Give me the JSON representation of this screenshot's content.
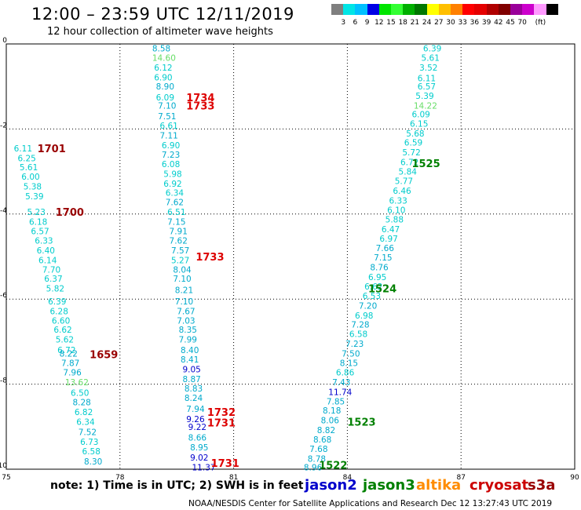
{
  "title": "12:00 – 23:59 UTC 12/11/2019",
  "subtitle": "12 hour collection of altimeter wave heights",
  "colorbar": {
    "colors": [
      "#7f7f7f",
      "#00e5e5",
      "#00c0ff",
      "#0000e5",
      "#00e500",
      "#33ff33",
      "#00b000",
      "#007800",
      "#ffff00",
      "#ffbf00",
      "#ff8000",
      "#ff0000",
      "#e50000",
      "#b00000",
      "#800000",
      "#990099",
      "#cc00cc",
      "#ff99ff",
      "#000000"
    ],
    "labels": [
      "3",
      "6",
      "9",
      "12",
      "15",
      "18",
      "21",
      "24",
      "27",
      "30",
      "33",
      "36",
      "39",
      "42",
      "45",
      "70",
      "(ft)"
    ]
  },
  "note": "note:  1) Time is in UTC;  2) SWH is in feet",
  "legend": [
    {
      "name": "jason2",
      "color": "#0000cc"
    },
    {
      "name": "jason3",
      "color": "#008000"
    },
    {
      "name": "altika",
      "color": "#ff8c00"
    },
    {
      "name": "cryosat",
      "color": "#cc0000"
    },
    {
      "name": "s3a",
      "color": "#990000"
    }
  ],
  "credit": "NOAA/NESDIS Center for Satellite Applications and Research     Dec 12 13:27:43 UTC 2019",
  "chart_data": {
    "type": "scatter",
    "xlim": [
      75,
      90
    ],
    "ylim": [
      -10,
      0
    ],
    "x_ticks": [
      "75",
      "78",
      "81",
      "84",
      "87",
      "90"
    ],
    "y_ticks": [
      "0",
      "-2",
      "-4",
      "-6",
      "-8",
      "-10"
    ],
    "grid": true,
    "tracks": [
      {
        "satellite": "s3a",
        "series": [
          {
            "name": "1701",
            "x": 75.82,
            "y": -2.45,
            "color": "#990000"
          },
          {
            "name": "1700",
            "x": 76.3,
            "y": -3.95,
            "color": "#990000"
          },
          {
            "name": "1659",
            "x": 77.2,
            "y": -7.3,
            "color": "#990000"
          }
        ],
        "points": [
          {
            "x": 75.2,
            "y": -2.45,
            "v": "6.11",
            "c": "#00cccc"
          },
          {
            "x": 75.3,
            "y": -2.68,
            "v": "6.25",
            "c": "#00cccc"
          },
          {
            "x": 75.35,
            "y": -2.9,
            "v": "5.61",
            "c": "#00cccc"
          },
          {
            "x": 75.4,
            "y": -3.12,
            "v": "6.00",
            "c": "#00cccc"
          },
          {
            "x": 75.45,
            "y": -3.35,
            "v": "5.38",
            "c": "#00cccc"
          },
          {
            "x": 75.5,
            "y": -3.58,
            "v": "5.39",
            "c": "#00cccc"
          },
          {
            "x": 75.55,
            "y": -3.95,
            "v": "5.23",
            "c": "#00cccc"
          },
          {
            "x": 75.6,
            "y": -4.18,
            "v": "6.18",
            "c": "#00cccc"
          },
          {
            "x": 75.65,
            "y": -4.4,
            "v": "6.57",
            "c": "#00cccc"
          },
          {
            "x": 75.75,
            "y": -4.62,
            "v": "6.33",
            "c": "#00cccc"
          },
          {
            "x": 75.8,
            "y": -4.85,
            "v": "6.40",
            "c": "#00cccc"
          },
          {
            "x": 75.85,
            "y": -5.08,
            "v": "6.14",
            "c": "#00cccc"
          },
          {
            "x": 75.95,
            "y": -5.3,
            "v": "7.70",
            "c": "#00cccc"
          },
          {
            "x": 76.0,
            "y": -5.52,
            "v": "6.37",
            "c": "#00cccc"
          },
          {
            "x": 76.05,
            "y": -5.75,
            "v": "5.82",
            "c": "#00cccc"
          },
          {
            "x": 76.1,
            "y": -6.05,
            "v": "6.39",
            "c": "#00cccc"
          },
          {
            "x": 76.15,
            "y": -6.28,
            "v": "6.28",
            "c": "#00cccc"
          },
          {
            "x": 76.2,
            "y": -6.5,
            "v": "6.60",
            "c": "#00cccc"
          },
          {
            "x": 76.25,
            "y": -6.72,
            "v": "6.62",
            "c": "#00cccc"
          },
          {
            "x": 76.3,
            "y": -6.95,
            "v": "5.62",
            "c": "#00cccc"
          },
          {
            "x": 76.35,
            "y": -7.2,
            "v": "6.72",
            "c": "#00cccc"
          },
          {
            "x": 76.4,
            "y": -7.28,
            "v": "8.22",
            "c": "#00aacc"
          },
          {
            "x": 76.45,
            "y": -7.5,
            "v": "7.87",
            "c": "#00aacc"
          },
          {
            "x": 76.5,
            "y": -7.72,
            "v": "7.96",
            "c": "#00aacc"
          },
          {
            "x": 76.55,
            "y": -7.95,
            "v": "13.62",
            "c": "#66dd66"
          },
          {
            "x": 76.7,
            "y": -8.2,
            "v": "6.50",
            "c": "#00cccc"
          },
          {
            "x": 76.75,
            "y": -8.42,
            "v": "8.28",
            "c": "#00aacc"
          },
          {
            "x": 76.8,
            "y": -8.65,
            "v": "6.82",
            "c": "#00cccc"
          },
          {
            "x": 76.85,
            "y": -8.88,
            "v": "6.34",
            "c": "#00cccc"
          },
          {
            "x": 76.9,
            "y": -9.12,
            "v": "7.52",
            "c": "#00aacc"
          },
          {
            "x": 76.95,
            "y": -9.35,
            "v": "6.73",
            "c": "#00cccc"
          },
          {
            "x": 77.0,
            "y": -9.58,
            "v": "6.58",
            "c": "#00cccc"
          },
          {
            "x": 77.05,
            "y": -9.82,
            "v": "8.30",
            "c": "#00aacc"
          }
        ]
      },
      {
        "satellite": "cryosat",
        "series": [
          {
            "name": "1734",
            "x": 79.75,
            "y": -1.25,
            "color": "#dd0000"
          },
          {
            "name": "1733",
            "x": 79.75,
            "y": -1.45,
            "color": "#dd0000"
          },
          {
            "name": "1733",
            "x": 80.0,
            "y": -5.0,
            "color": "#dd0000"
          },
          {
            "name": "1732",
            "x": 80.3,
            "y": -8.65,
            "color": "#dd0000"
          },
          {
            "name": "1731",
            "x": 80.3,
            "y": -8.9,
            "color": "#dd0000"
          },
          {
            "name": "1731",
            "x": 80.4,
            "y": -9.85,
            "color": "#dd0000"
          }
        ],
        "points": [
          {
            "x": 78.85,
            "y": -0.1,
            "v": "8.58",
            "c": "#00aacc"
          },
          {
            "x": 78.85,
            "y": -0.32,
            "v": "14.60",
            "c": "#66dd66"
          },
          {
            "x": 78.9,
            "y": -0.55,
            "v": "6.12",
            "c": "#00cccc"
          },
          {
            "x": 78.9,
            "y": -0.78,
            "v": "6.90",
            "c": "#00cccc"
          },
          {
            "x": 78.95,
            "y": -1.0,
            "v": "8.90",
            "c": "#00aacc"
          },
          {
            "x": 78.95,
            "y": -1.25,
            "v": "6.09",
            "c": "#00cccc"
          },
          {
            "x": 79.0,
            "y": -1.45,
            "v": "7.10",
            "c": "#00aacc"
          },
          {
            "x": 79.0,
            "y": -1.7,
            "v": "7.51",
            "c": "#00aacc"
          },
          {
            "x": 79.05,
            "y": -1.92,
            "v": "6.61",
            "c": "#00cccc"
          },
          {
            "x": 79.05,
            "y": -2.15,
            "v": "7.11",
            "c": "#00aacc"
          },
          {
            "x": 79.1,
            "y": -2.38,
            "v": "6.90",
            "c": "#00cccc"
          },
          {
            "x": 79.1,
            "y": -2.6,
            "v": "7.23",
            "c": "#00aacc"
          },
          {
            "x": 79.1,
            "y": -2.82,
            "v": "6.08",
            "c": "#00cccc"
          },
          {
            "x": 79.15,
            "y": -3.05,
            "v": "5.98",
            "c": "#00cccc"
          },
          {
            "x": 79.15,
            "y": -3.28,
            "v": "6.92",
            "c": "#00cccc"
          },
          {
            "x": 79.2,
            "y": -3.5,
            "v": "6.34",
            "c": "#00cccc"
          },
          {
            "x": 79.2,
            "y": -3.72,
            "v": "7.62",
            "c": "#00aacc"
          },
          {
            "x": 79.25,
            "y": -3.95,
            "v": "6.51",
            "c": "#00cccc"
          },
          {
            "x": 79.25,
            "y": -4.18,
            "v": "7.15",
            "c": "#00aacc"
          },
          {
            "x": 79.3,
            "y": -4.4,
            "v": "7.91",
            "c": "#00aacc"
          },
          {
            "x": 79.3,
            "y": -4.62,
            "v": "7.62",
            "c": "#00aacc"
          },
          {
            "x": 79.35,
            "y": -4.85,
            "v": "7.57",
            "c": "#00aacc"
          },
          {
            "x": 79.35,
            "y": -5.08,
            "v": "5.27",
            "c": "#00cccc"
          },
          {
            "x": 79.4,
            "y": -5.3,
            "v": "8.04",
            "c": "#00aacc"
          },
          {
            "x": 79.4,
            "y": -5.52,
            "v": "7.10",
            "c": "#00aacc"
          },
          {
            "x": 79.45,
            "y": -5.78,
            "v": "8.21",
            "c": "#00aacc"
          },
          {
            "x": 79.45,
            "y": -6.05,
            "v": "7.10",
            "c": "#00aacc"
          },
          {
            "x": 79.5,
            "y": -6.28,
            "v": "7.67",
            "c": "#00aacc"
          },
          {
            "x": 79.5,
            "y": -6.5,
            "v": "7.03",
            "c": "#00aacc"
          },
          {
            "x": 79.55,
            "y": -6.72,
            "v": "8.35",
            "c": "#00aacc"
          },
          {
            "x": 79.55,
            "y": -6.95,
            "v": "7.99",
            "c": "#00aacc"
          },
          {
            "x": 79.6,
            "y": -7.2,
            "v": "8.40",
            "c": "#00aacc"
          },
          {
            "x": 79.6,
            "y": -7.42,
            "v": "8.41",
            "c": "#00aacc"
          },
          {
            "x": 79.65,
            "y": -7.65,
            "v": "9.05",
            "c": "#0000cc"
          },
          {
            "x": 79.65,
            "y": -7.88,
            "v": "8.87",
            "c": "#00aacc"
          },
          {
            "x": 79.7,
            "y": -8.1,
            "v": "8.83",
            "c": "#00aacc"
          },
          {
            "x": 79.7,
            "y": -8.32,
            "v": "8.24",
            "c": "#00aacc"
          },
          {
            "x": 79.75,
            "y": -8.58,
            "v": "7.94",
            "c": "#00aacc"
          },
          {
            "x": 79.75,
            "y": -8.82,
            "v": "9.26",
            "c": "#0000cc"
          },
          {
            "x": 79.8,
            "y": -9.0,
            "v": "9.22",
            "c": "#0000cc"
          },
          {
            "x": 79.8,
            "y": -9.25,
            "v": "8.66",
            "c": "#00aacc"
          },
          {
            "x": 79.85,
            "y": -9.48,
            "v": "8.95",
            "c": "#00aacc"
          },
          {
            "x": 79.85,
            "y": -9.72,
            "v": "9.02",
            "c": "#0000cc"
          },
          {
            "x": 79.9,
            "y": -9.95,
            "v": "11.37",
            "c": "#0000cc"
          }
        ]
      },
      {
        "satellite": "jason3",
        "series": [
          {
            "name": "1525",
            "x": 85.7,
            "y": -2.8,
            "color": "#008000"
          },
          {
            "name": "1524",
            "x": 84.55,
            "y": -5.75,
            "color": "#008000"
          },
          {
            "name": "1523",
            "x": 84.0,
            "y": -8.88,
            "color": "#008000"
          },
          {
            "name": "1522",
            "x": 83.25,
            "y": -9.9,
            "color": "#008000"
          }
        ],
        "points": [
          {
            "x": 86.0,
            "y": -0.1,
            "v": "6.39",
            "c": "#00cccc"
          },
          {
            "x": 85.95,
            "y": -0.32,
            "v": "5.61",
            "c": "#00cccc"
          },
          {
            "x": 85.9,
            "y": -0.55,
            "v": "3.52",
            "c": "#00cccc"
          },
          {
            "x": 85.85,
            "y": -0.8,
            "v": "6.11",
            "c": "#00cccc"
          },
          {
            "x": 85.85,
            "y": -1.0,
            "v": "6.57",
            "c": "#00cccc"
          },
          {
            "x": 85.8,
            "y": -1.22,
            "v": "5.39",
            "c": "#00cccc"
          },
          {
            "x": 85.75,
            "y": -1.45,
            "v": "14.22",
            "c": "#66dd66"
          },
          {
            "x": 85.7,
            "y": -1.65,
            "v": "6.09",
            "c": "#00cccc"
          },
          {
            "x": 85.65,
            "y": -1.87,
            "v": "6.15",
            "c": "#00cccc"
          },
          {
            "x": 85.55,
            "y": -2.1,
            "v": "5.68",
            "c": "#00cccc"
          },
          {
            "x": 85.5,
            "y": -2.32,
            "v": "6.59",
            "c": "#00cccc"
          },
          {
            "x": 85.45,
            "y": -2.55,
            "v": "5.72",
            "c": "#00cccc"
          },
          {
            "x": 85.4,
            "y": -2.78,
            "v": "6.72",
            "c": "#00cccc"
          },
          {
            "x": 85.35,
            "y": -3.0,
            "v": "5.84",
            "c": "#00cccc"
          },
          {
            "x": 85.25,
            "y": -3.22,
            "v": "5.77",
            "c": "#00cccc"
          },
          {
            "x": 85.2,
            "y": -3.45,
            "v": "6.46",
            "c": "#00cccc"
          },
          {
            "x": 85.1,
            "y": -3.68,
            "v": "6.33",
            "c": "#00cccc"
          },
          {
            "x": 85.05,
            "y": -3.9,
            "v": "6.10",
            "c": "#00cccc"
          },
          {
            "x": 85.0,
            "y": -4.12,
            "v": "5.88",
            "c": "#00cccc"
          },
          {
            "x": 84.9,
            "y": -4.35,
            "v": "6.47",
            "c": "#00cccc"
          },
          {
            "x": 84.85,
            "y": -4.58,
            "v": "6.97",
            "c": "#00cccc"
          },
          {
            "x": 84.75,
            "y": -4.8,
            "v": "7.66",
            "c": "#00aacc"
          },
          {
            "x": 84.7,
            "y": -5.02,
            "v": "7.15",
            "c": "#00aacc"
          },
          {
            "x": 84.6,
            "y": -5.25,
            "v": "8.76",
            "c": "#00aacc"
          },
          {
            "x": 84.55,
            "y": -5.48,
            "v": "6.95",
            "c": "#00cccc"
          },
          {
            "x": 84.45,
            "y": -5.7,
            "v": "6.62",
            "c": "#00cccc"
          },
          {
            "x": 84.4,
            "y": -5.92,
            "v": "6.53",
            "c": "#00cccc"
          },
          {
            "x": 84.3,
            "y": -6.15,
            "v": "7.20",
            "c": "#00aacc"
          },
          {
            "x": 84.2,
            "y": -6.38,
            "v": "6.98",
            "c": "#00cccc"
          },
          {
            "x": 84.1,
            "y": -6.6,
            "v": "7.28",
            "c": "#00aacc"
          },
          {
            "x": 84.05,
            "y": -6.82,
            "v": "6.58",
            "c": "#00cccc"
          },
          {
            "x": 83.95,
            "y": -7.05,
            "v": "7.23",
            "c": "#00aacc"
          },
          {
            "x": 83.85,
            "y": -7.28,
            "v": "7.50",
            "c": "#00aacc"
          },
          {
            "x": 83.8,
            "y": -7.5,
            "v": "8.15",
            "c": "#00aacc"
          },
          {
            "x": 83.7,
            "y": -7.72,
            "v": "6.86",
            "c": "#00cccc"
          },
          {
            "x": 83.6,
            "y": -7.95,
            "v": "7.43",
            "c": "#00aacc"
          },
          {
            "x": 83.5,
            "y": -8.18,
            "v": "11.74",
            "c": "#0000cc"
          },
          {
            "x": 83.45,
            "y": -8.4,
            "v": "7.85",
            "c": "#00aacc"
          },
          {
            "x": 83.35,
            "y": -8.62,
            "v": "8.18",
            "c": "#00aacc"
          },
          {
            "x": 83.3,
            "y": -8.85,
            "v": "8.06",
            "c": "#00aacc"
          },
          {
            "x": 83.2,
            "y": -9.08,
            "v": "8.82",
            "c": "#00aacc"
          },
          {
            "x": 83.1,
            "y": -9.3,
            "v": "8.68",
            "c": "#00aacc"
          },
          {
            "x": 83.0,
            "y": -9.52,
            "v": "7.68",
            "c": "#00aacc"
          },
          {
            "x": 82.95,
            "y": -9.75,
            "v": "8.78",
            "c": "#00aacc"
          },
          {
            "x": 82.85,
            "y": -9.95,
            "v": "8.96",
            "c": "#00aacc"
          }
        ]
      }
    ]
  }
}
